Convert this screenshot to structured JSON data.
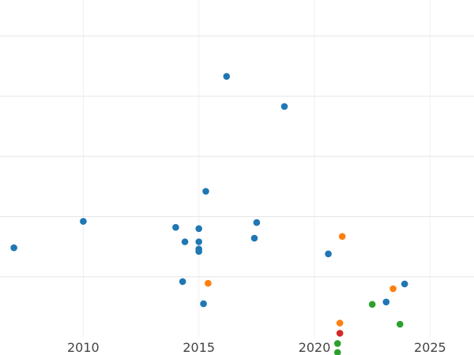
{
  "chart_data": {
    "type": "scatter",
    "title": "",
    "xlabel": "",
    "ylabel": "",
    "grid": true,
    "legend": "none",
    "xlim": [
      2006.4,
      2026.9
    ],
    "ylim": [
      0,
      5.6
    ],
    "x_ticks": [
      2010,
      2015,
      2020,
      2025
    ],
    "x_tick_labels": [
      "2010",
      "2015",
      "2020",
      "2025"
    ],
    "y_gridlines": [
      1,
      2,
      3,
      4,
      5
    ],
    "series": [
      {
        "color": "#1f77b4",
        "points": [
          {
            "x": 2007.0,
            "y": 1.48
          },
          {
            "x": 2010.0,
            "y": 1.92
          },
          {
            "x": 2014.0,
            "y": 1.82
          },
          {
            "x": 2014.3,
            "y": 0.92
          },
          {
            "x": 2014.4,
            "y": 1.58
          },
          {
            "x": 2015.0,
            "y": 1.8
          },
          {
            "x": 2015.0,
            "y": 1.58
          },
          {
            "x": 2015.0,
            "y": 1.46
          },
          {
            "x": 2015.0,
            "y": 1.42
          },
          {
            "x": 2015.2,
            "y": 0.55
          },
          {
            "x": 2015.3,
            "y": 2.42
          },
          {
            "x": 2016.2,
            "y": 4.33
          },
          {
            "x": 2017.4,
            "y": 1.64
          },
          {
            "x": 2017.5,
            "y": 1.9
          },
          {
            "x": 2018.7,
            "y": 3.83
          },
          {
            "x": 2020.6,
            "y": 1.38
          },
          {
            "x": 2023.1,
            "y": 0.58
          },
          {
            "x": 2023.9,
            "y": 0.88
          }
        ]
      },
      {
        "color": "#ff7f0e",
        "points": [
          {
            "x": 2015.4,
            "y": 0.89
          },
          {
            "x": 2021.1,
            "y": 0.23
          },
          {
            "x": 2021.2,
            "y": 1.67
          },
          {
            "x": 2023.4,
            "y": 0.8
          }
        ]
      },
      {
        "color": "#2ca02c",
        "points": [
          {
            "x": 2021.0,
            "y": -0.11
          },
          {
            "x": 2021.0,
            "y": -0.26
          },
          {
            "x": 2022.5,
            "y": 0.54
          },
          {
            "x": 2023.7,
            "y": 0.21
          }
        ]
      },
      {
        "color": "#d62728",
        "points": [
          {
            "x": 2021.1,
            "y": 0.06
          }
        ]
      }
    ]
  }
}
